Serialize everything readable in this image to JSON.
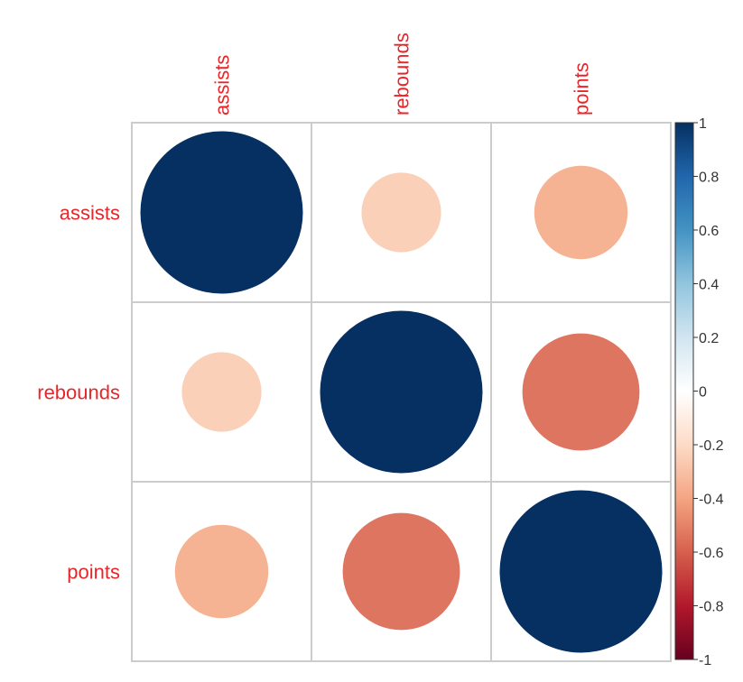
{
  "chart_data": {
    "type": "heatmap",
    "subtype": "corrplot-circle",
    "title": "",
    "variables": [
      "assists",
      "rebounds",
      "points"
    ],
    "row_labels": [
      "assists",
      "rebounds",
      "points"
    ],
    "col_labels": [
      "assists",
      "rebounds",
      "points"
    ],
    "matrix": [
      [
        1.0,
        -0.24,
        -0.33
      ],
      [
        -0.24,
        1.0,
        -0.52
      ],
      [
        -0.33,
        -0.52,
        1.0
      ]
    ],
    "cell_colors": [
      [
        "#053061",
        "#FBD0B9",
        "#F6B394"
      ],
      [
        "#FBD0B9",
        "#053061",
        "#DD7560"
      ],
      [
        "#F6B394",
        "#DD7560",
        "#053061"
      ]
    ],
    "colorbar": {
      "range": [
        -1,
        1
      ],
      "ticks": [
        "1",
        "0.8",
        "0.6",
        "0.4",
        "0.2",
        "0",
        "-0.2",
        "-0.4",
        "-0.6",
        "-0.8",
        "-1"
      ],
      "gradient": [
        "#053061",
        "#2166AC",
        "#4393C3",
        "#92C5DE",
        "#D1E5F0",
        "#FFFFFF",
        "#FDDBC7",
        "#F4A582",
        "#D6604D",
        "#B2182B",
        "#67001F"
      ]
    },
    "label_color": "#E8262A",
    "grid_color": "#CCCCCC",
    "legend_position": "right"
  }
}
